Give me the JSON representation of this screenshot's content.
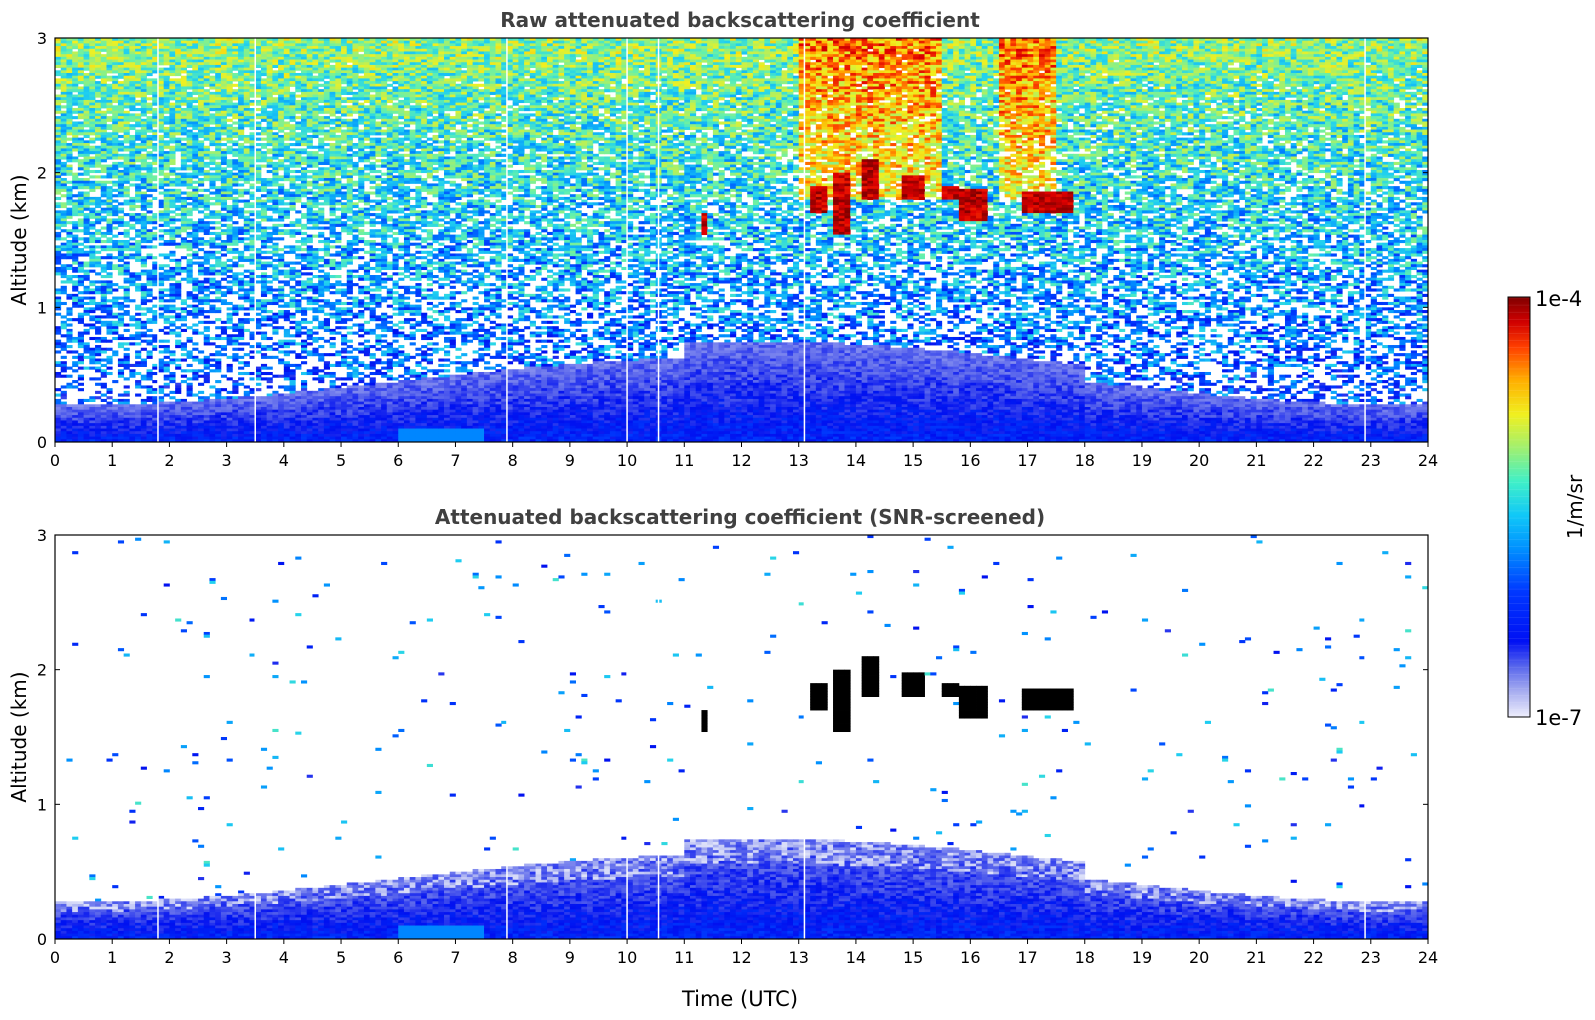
{
  "chart_data": [
    {
      "type": "heatmap",
      "title": "Raw attenuated backscattering coefficient",
      "xlabel": "",
      "ylabel": "Altitude (km)",
      "xlim": [
        0,
        24
      ],
      "ylim": [
        0,
        3
      ],
      "x_ticks": [
        "0",
        "1",
        "2",
        "3",
        "4",
        "5",
        "6",
        "7",
        "8",
        "9",
        "10",
        "11",
        "12",
        "13",
        "14",
        "15",
        "16",
        "17",
        "18",
        "19",
        "20",
        "21",
        "22",
        "23",
        "24"
      ],
      "y_ticks": [
        "0",
        "1",
        "2",
        "3"
      ],
      "features": {
        "aerosol_layer_top_km": 0.45,
        "cloud_base_km": [
          1.5,
          2.1
        ],
        "cloud_time_utc": [
          11.3,
          17.8
        ],
        "data_gaps_utc": [
          1.8,
          3.5,
          7.9,
          10.0,
          10.55,
          13.1,
          22.9
        ]
      }
    },
    {
      "type": "heatmap",
      "title": "Attenuated backscattering coefficient (SNR-screened)",
      "xlabel": "Time (UTC)",
      "ylabel": "Altitude (km)",
      "xlim": [
        0,
        24
      ],
      "ylim": [
        0,
        3
      ],
      "x_ticks": [
        "0",
        "1",
        "2",
        "3",
        "4",
        "5",
        "6",
        "7",
        "8",
        "9",
        "10",
        "11",
        "12",
        "13",
        "14",
        "15",
        "16",
        "17",
        "18",
        "19",
        "20",
        "21",
        "22",
        "23",
        "24"
      ],
      "y_ticks": [
        "0",
        "1",
        "2",
        "3"
      ],
      "features": {
        "boundary_layer_top_km": 0.6,
        "cloud_base_km": [
          1.5,
          2.1
        ],
        "cloud_time_utc": [
          11.3,
          17.8
        ],
        "data_gaps_utc": [
          1.8,
          3.5,
          7.9,
          10.0,
          10.55,
          13.1,
          22.9
        ]
      }
    }
  ],
  "colorbar": {
    "label": "1/m/sr",
    "max_label": "1e-4",
    "min_label": "1e-7",
    "scale": "log",
    "colormap": [
      "#ffffff",
      "#d8dcf8",
      "#9aa2f0",
      "#5a66ec",
      "#0010f0",
      "#0040ff",
      "#0090ff",
      "#20d0f0",
      "#60f0b0",
      "#b0f060",
      "#f0f020",
      "#ffb000",
      "#ff5000",
      "#e00000",
      "#800000"
    ]
  }
}
